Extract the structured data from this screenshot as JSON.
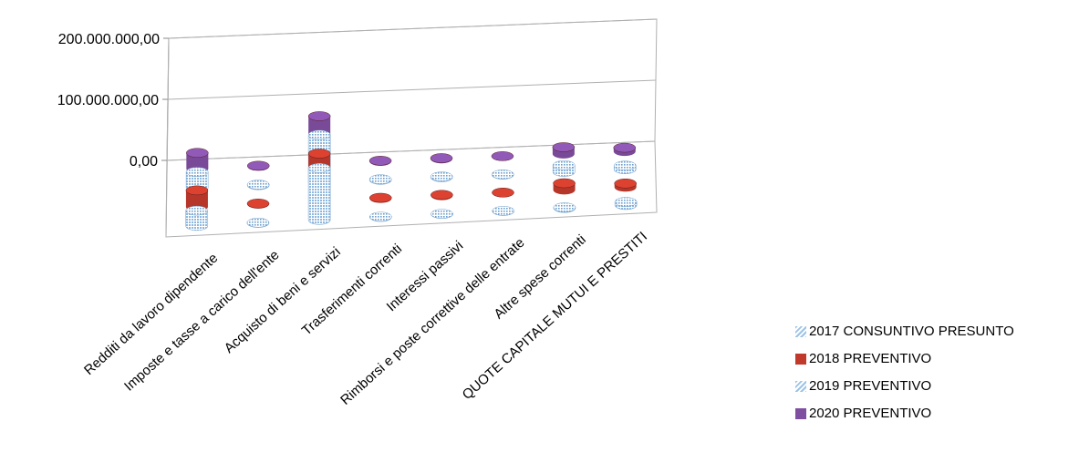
{
  "chart_data": {
    "type": "bar",
    "subtype": "3d-cylinder",
    "title": "",
    "xlabel": "",
    "ylabel": "",
    "ylim": [
      0,
      200000000
    ],
    "yticks": [
      "0,00",
      "100.000.000,00",
      "200.000.000,00"
    ],
    "grid": true,
    "legend_position": "right",
    "categories": [
      "Redditi da lavoro dipendente",
      "Imposte e tasse a carico dell'ente",
      "Acquisto di beni e servizi",
      "Trasferimenti correnti",
      "Interessi passivi",
      "Rimborsi e poste correttive delle entrate",
      "Altre spese correnti",
      "QUOTE CAPITALE MUTUI E PRESTITI"
    ],
    "series": [
      {
        "name": "2017 CONSUNTIVO PRESUNTO",
        "color": "#9dc3e6",
        "pattern": "dots",
        "values": [
          25000000,
          500000,
          85000000,
          400000,
          200000,
          150000,
          1000000,
          5000000
        ]
      },
      {
        "name": "2018 PREVENTIVO",
        "color": "#c0392b",
        "pattern": "solid",
        "values": [
          27000000,
          800000,
          78000000,
          1000000,
          1200000,
          300000,
          11000000,
          6000000
        ]
      },
      {
        "name": "2019 PREVENTIVO",
        "color": "#9dc3e6",
        "pattern": "dots",
        "values": [
          26000000,
          900000,
          78000000,
          1000000,
          1200000,
          300000,
          11000000,
          6000000
        ]
      },
      {
        "name": "2020 PREVENTIVO",
        "color": "#7f4ea0",
        "pattern": "solid",
        "values": [
          26000000,
          900000,
          78000000,
          1000000,
          1200000,
          300000,
          11000000,
          6000000
        ]
      }
    ]
  }
}
